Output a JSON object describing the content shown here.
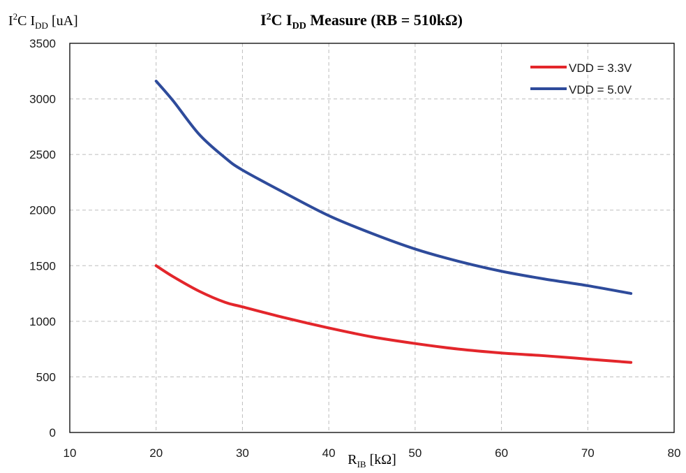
{
  "chart_data": {
    "type": "line",
    "title": {
      "main": "I",
      "sup": "2",
      "mid": "C I",
      "sub": "DD",
      "rest": " Measure (RB = 510kΩ)"
    },
    "ylabel": {
      "main": "I",
      "sup": "2",
      "mid": "C I",
      "sub": "DD",
      "rest": " [uA]"
    },
    "xlabel": {
      "main": "R",
      "sub": "IB",
      "rest": " [kΩ]"
    },
    "xlim": [
      10,
      80
    ],
    "ylim": [
      0,
      3500
    ],
    "xticks": [
      10,
      20,
      30,
      40,
      50,
      60,
      70,
      80
    ],
    "yticks": [
      0,
      500,
      1000,
      1500,
      2000,
      2500,
      3000,
      3500
    ],
    "grid": true,
    "legend_position": "top-right",
    "series": [
      {
        "name": "VDD = 3.3V",
        "color": "#e3262b",
        "x": [
          20,
          22,
          25,
          28,
          30,
          35,
          40,
          45,
          50,
          55,
          60,
          65,
          70,
          75
        ],
        "y": [
          1500,
          1400,
          1270,
          1170,
          1130,
          1030,
          940,
          860,
          800,
          750,
          715,
          690,
          660,
          630
        ]
      },
      {
        "name": "VDD = 5.0V",
        "color": "#2e4b9b",
        "x": [
          20,
          22,
          25,
          28,
          30,
          35,
          40,
          45,
          50,
          55,
          60,
          65,
          70,
          75
        ],
        "y": [
          3160,
          2980,
          2680,
          2470,
          2360,
          2150,
          1950,
          1790,
          1650,
          1540,
          1450,
          1380,
          1320,
          1250
        ]
      }
    ]
  }
}
